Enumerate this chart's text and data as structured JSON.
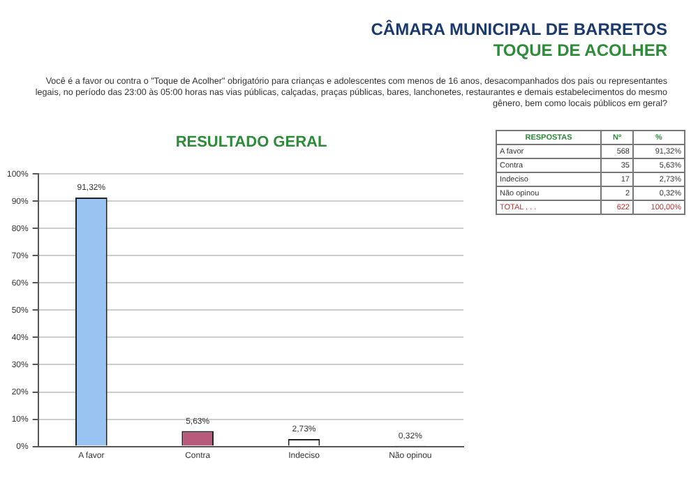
{
  "chart_data": {
    "type": "bar",
    "title": "CÂMARA MUNICIPAL DE BARRETOS",
    "subtitle": "TOQUE DE ACOLHER",
    "annotations": [
      "Você é a favor ou contra o \"Toque de Acolher\" obrigatório para crianças e adolescentes com menos de 16 anos, desacompanhados dos pais ou representantes legais, no período das 23:00 às 05:00 horas nas vias públicas, calçadas, praças públicas, bares, lanchonetes, restaurantes e demais estabelecimentos do mesmo gênero, bem como locais públicos em geral?",
      "RESULTADO GERAL",
      "RESPOSTAS",
      "Nº",
      "%",
      "A favor",
      "568",
      "91,32%",
      "Contra",
      "35",
      "5,63%",
      "Indeciso",
      "17",
      "2,73%",
      "Não opinou",
      "2",
      "0,32%",
      "TOTAL . . .",
      "622",
      "100,00%"
    ],
    "categories": [
      "A favor",
      "Contra",
      "Indeciso",
      "Não opinou"
    ],
    "values": [
      91.32,
      5.63,
      2.73,
      0.32
    ],
    "colors": [
      "#99c4f2",
      "#b85a7c",
      "#ffffff",
      "#333333"
    ],
    "value_labels": [
      "91,32%",
      "5,63%",
      "2,73%",
      "0,32%"
    ],
    "ylim": [
      0,
      100
    ],
    "yticks": [
      {
        "value": 0,
        "label": "0%"
      },
      {
        "value": 10,
        "label": "10%"
      },
      {
        "value": 20,
        "label": "20%"
      },
      {
        "value": 30,
        "label": "30%"
      },
      {
        "value": 40,
        "label": "40%"
      },
      {
        "value": 50,
        "label": "50%"
      },
      {
        "value": 60,
        "label": "60%"
      },
      {
        "value": 70,
        "label": "70%"
      },
      {
        "value": 80,
        "label": "80%"
      },
      {
        "value": 90,
        "label": "90%"
      },
      {
        "value": 100,
        "label": "100%"
      }
    ],
    "grid": "y",
    "legend": false
  }
}
